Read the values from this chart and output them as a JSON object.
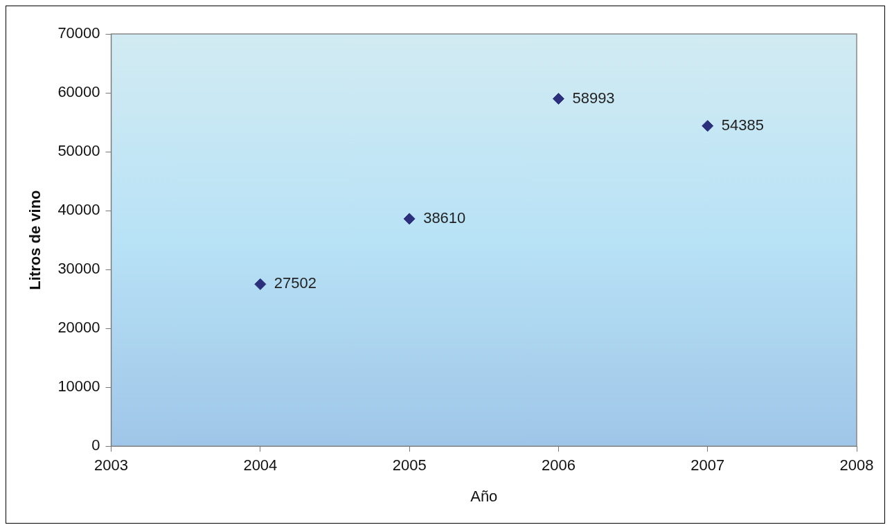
{
  "chart_data": {
    "type": "scatter",
    "xlabel": "Año",
    "ylabel": "Litros de vino",
    "x": [
      2004,
      2005,
      2006,
      2007
    ],
    "series": [
      {
        "color": "#2b2f7c",
        "values": [
          27502,
          38610,
          58993,
          54385
        ]
      }
    ],
    "xlim": [
      2003,
      2008
    ],
    "xticks": [
      2003,
      2004,
      2005,
      2006,
      2007,
      2008
    ],
    "ylim": [
      0,
      70000
    ],
    "yticks": [
      0,
      10000,
      20000,
      30000,
      40000,
      50000,
      60000,
      70000
    ],
    "marker": "diamond",
    "data_labels": true,
    "grid": false,
    "legend": false
  }
}
